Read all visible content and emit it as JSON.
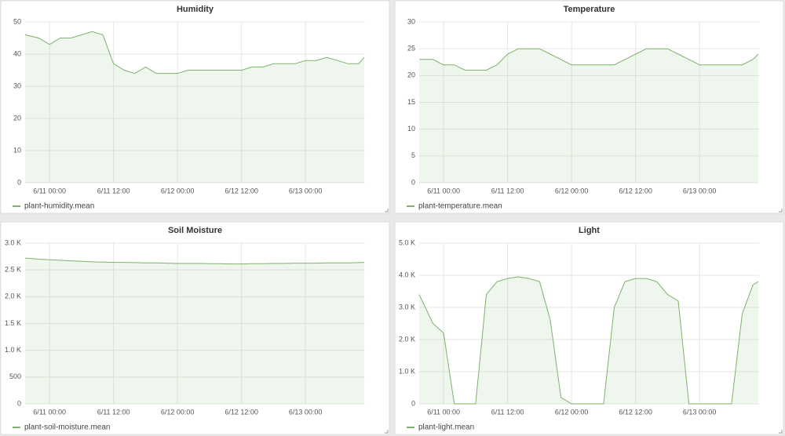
{
  "chart_data": [
    {
      "type": "line",
      "title": "Humidity",
      "x": [
        "6/10 19:25",
        "6/10 22:00",
        "6/11 00:00",
        "6/11 02:00",
        "6/11 04:00",
        "6/11 06:00",
        "6/11 08:00",
        "6/11 10:00",
        "6/11 12:00",
        "6/11 14:00",
        "6/11 16:00",
        "6/11 18:00",
        "6/11 20:00",
        "6/11 22:00",
        "6/12 00:00",
        "6/12 02:00",
        "6/12 04:00",
        "6/12 06:00",
        "6/12 08:00",
        "6/12 10:00",
        "6/12 12:00",
        "6/12 14:00",
        "6/12 16:00",
        "6/12 18:00",
        "6/12 20:00",
        "6/12 22:00",
        "6/13 00:00",
        "6/13 02:00",
        "6/13 04:00",
        "6/13 06:00",
        "6/13 08:00",
        "6/13 10:00",
        "6/13 11:00"
      ],
      "series": [
        {
          "name": "plant-humidity.mean",
          "color": "#7eb26d",
          "values": [
            46,
            45,
            43,
            45,
            45,
            46,
            47,
            46,
            37,
            35,
            34,
            36,
            34,
            34,
            34,
            35,
            35,
            35,
            35,
            35,
            35,
            36,
            36,
            37,
            37,
            37,
            38,
            38,
            39,
            38,
            37,
            37,
            39
          ]
        }
      ],
      "xlim": [
        "6/10 19:25",
        "6/13 11:10"
      ],
      "xticks": [
        "6/11 00:00",
        "6/11 12:00",
        "6/12 00:00",
        "6/12 12:00",
        "6/13 00:00"
      ],
      "ylim": [
        0,
        50
      ],
      "yticks": [
        0,
        10,
        20,
        30,
        40,
        50
      ],
      "grid": true
    },
    {
      "type": "line",
      "title": "Temperature",
      "x": [
        "6/10 19:25",
        "6/10 22:00",
        "6/11 00:00",
        "6/11 02:00",
        "6/11 04:00",
        "6/11 06:00",
        "6/11 08:00",
        "6/11 10:00",
        "6/11 12:00",
        "6/11 14:00",
        "6/11 16:00",
        "6/11 18:00",
        "6/11 20:00",
        "6/11 22:00",
        "6/12 00:00",
        "6/12 02:00",
        "6/12 04:00",
        "6/12 06:00",
        "6/12 08:00",
        "6/12 10:00",
        "6/12 12:00",
        "6/12 14:00",
        "6/12 16:00",
        "6/12 18:00",
        "6/12 20:00",
        "6/12 22:00",
        "6/13 00:00",
        "6/13 02:00",
        "6/13 04:00",
        "6/13 06:00",
        "6/13 08:00",
        "6/13 10:00",
        "6/13 11:00"
      ],
      "series": [
        {
          "name": "plant-temperature.mean",
          "color": "#7eb26d",
          "values": [
            23,
            23,
            22,
            22,
            21,
            21,
            21,
            22,
            24,
            25,
            25,
            25,
            24,
            23,
            22,
            22,
            22,
            22,
            22,
            23,
            24,
            25,
            25,
            25,
            24,
            23,
            22,
            22,
            22,
            22,
            22,
            23,
            24
          ]
        }
      ],
      "xlim": [
        "6/10 19:25",
        "6/13 11:10"
      ],
      "xticks": [
        "6/11 00:00",
        "6/11 12:00",
        "6/12 00:00",
        "6/12 12:00",
        "6/13 00:00"
      ],
      "ylim": [
        0,
        30
      ],
      "yticks": [
        0,
        5,
        10,
        15,
        20,
        25,
        30
      ],
      "grid": true
    },
    {
      "type": "line",
      "title": "Soil Moisture",
      "x": [
        "6/10 19:25",
        "6/10 22:00",
        "6/11 00:00",
        "6/11 02:00",
        "6/11 04:00",
        "6/11 06:00",
        "6/11 08:00",
        "6/11 10:00",
        "6/11 12:00",
        "6/11 14:00",
        "6/11 16:00",
        "6/11 18:00",
        "6/11 20:00",
        "6/11 22:00",
        "6/12 00:00",
        "6/12 02:00",
        "6/12 04:00",
        "6/12 06:00",
        "6/12 08:00",
        "6/12 10:00",
        "6/12 12:00",
        "6/12 14:00",
        "6/12 16:00",
        "6/12 18:00",
        "6/12 20:00",
        "6/12 22:00",
        "6/13 00:00",
        "6/13 02:00",
        "6/13 04:00",
        "6/13 06:00",
        "6/13 08:00",
        "6/13 10:00",
        "6/13 11:00"
      ],
      "series": [
        {
          "name": "plant-soil-moisture.mean",
          "color": "#7eb26d",
          "values": [
            2720,
            2700,
            2690,
            2680,
            2670,
            2660,
            2650,
            2645,
            2640,
            2640,
            2635,
            2630,
            2630,
            2625,
            2620,
            2620,
            2620,
            2615,
            2615,
            2610,
            2610,
            2615,
            2615,
            2620,
            2620,
            2625,
            2625,
            2625,
            2630,
            2630,
            2630,
            2635,
            2640
          ]
        }
      ],
      "xlim": [
        "6/10 19:25",
        "6/13 11:10"
      ],
      "xticks": [
        "6/11 00:00",
        "6/11 12:00",
        "6/12 00:00",
        "6/12 12:00",
        "6/13 00:00"
      ],
      "ylim": [
        0,
        3000
      ],
      "yticks": [
        0,
        500,
        {
          "value": 1000,
          "label": "1.0 K"
        },
        {
          "value": 1500,
          "label": "1.5 K"
        },
        {
          "value": 2000,
          "label": "2.0 K"
        },
        {
          "value": 2500,
          "label": "2.5 K"
        },
        {
          "value": 3000,
          "label": "3.0 K"
        }
      ],
      "grid": true
    },
    {
      "type": "line",
      "title": "Light",
      "x": [
        "6/10 19:25",
        "6/10 22:00",
        "6/11 00:00",
        "6/11 02:00",
        "6/11 04:00",
        "6/11 06:00",
        "6/11 08:00",
        "6/11 10:00",
        "6/11 12:00",
        "6/11 14:00",
        "6/11 16:00",
        "6/11 18:00",
        "6/11 20:00",
        "6/11 22:00",
        "6/12 00:00",
        "6/12 02:00",
        "6/12 04:00",
        "6/12 06:00",
        "6/12 08:00",
        "6/12 10:00",
        "6/12 12:00",
        "6/12 14:00",
        "6/12 16:00",
        "6/12 18:00",
        "6/12 20:00",
        "6/12 22:00",
        "6/13 00:00",
        "6/13 02:00",
        "6/13 04:00",
        "6/13 06:00",
        "6/13 08:00",
        "6/13 10:00",
        "6/13 11:00"
      ],
      "series": [
        {
          "name": "plant-light.mean",
          "color": "#7eb26d",
          "values": [
            3400,
            2500,
            2200,
            0,
            0,
            0,
            3400,
            3800,
            3900,
            3950,
            3900,
            3800,
            2600,
            200,
            0,
            0,
            0,
            0,
            3000,
            3800,
            3900,
            3900,
            3800,
            3400,
            3200,
            0,
            0,
            0,
            0,
            0,
            2800,
            3700,
            3800
          ]
        }
      ],
      "xlim": [
        "6/10 19:25",
        "6/13 11:10"
      ],
      "xticks": [
        "6/11 00:00",
        "6/11 12:00",
        "6/12 00:00",
        "6/12 12:00",
        "6/13 00:00"
      ],
      "ylim": [
        0,
        5000
      ],
      "yticks": [
        0,
        {
          "value": 1000,
          "label": "1.0 K"
        },
        {
          "value": 2000,
          "label": "2.0 K"
        },
        {
          "value": 3000,
          "label": "3.0 K"
        },
        {
          "value": 4000,
          "label": "4.0 K"
        },
        {
          "value": 5000,
          "label": "5.0 K"
        }
      ],
      "grid": true
    }
  ]
}
